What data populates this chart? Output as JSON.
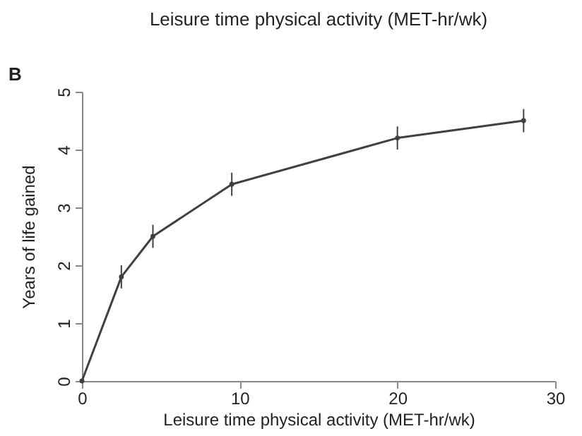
{
  "chart_data": {
    "type": "line",
    "title": "Leisure time physical activity (MET-hr/wk)",
    "xlabel": "Leisure time physical activity (MET-hr/wk)",
    "ylabel": "Years of life gained",
    "annotations": [
      "B"
    ],
    "x": [
      0,
      2.5,
      4.5,
      9.5,
      20,
      28
    ],
    "series": [
      {
        "color": "#404040",
        "values": [
          0,
          1.8,
          2.5,
          3.4,
          4.2,
          4.5
        ],
        "errors": [
          null,
          0.2,
          0.2,
          0.2,
          0.2,
          0.2
        ]
      }
    ],
    "xlim": [
      0,
      30
    ],
    "xticks": [
      0,
      10,
      20,
      30
    ],
    "ylim": [
      0,
      5
    ],
    "yticks": [
      0,
      1,
      2,
      3,
      4,
      5
    ],
    "grid": false,
    "marker": "circle",
    "line_style": "solid"
  }
}
